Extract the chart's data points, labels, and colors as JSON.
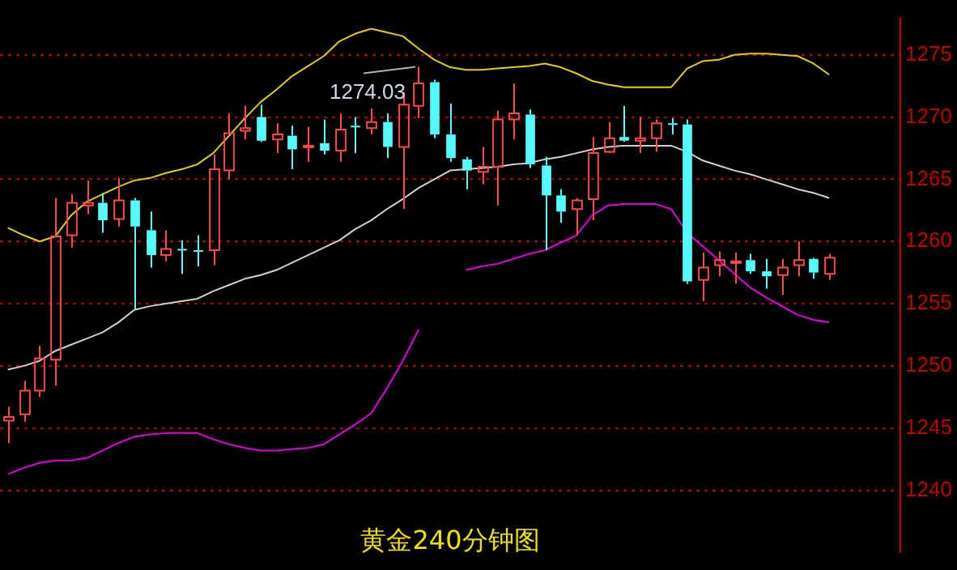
{
  "chart_data": {
    "type": "candlestick",
    "title": "黄金240分钟图",
    "categories": [
      null,
      null,
      null,
      null,
      null,
      null,
      null,
      null,
      null,
      null,
      null,
      null,
      null,
      null,
      null,
      null,
      null,
      null,
      null,
      null,
      null,
      null,
      null,
      null,
      null,
      null,
      null,
      null,
      null,
      null,
      null,
      null,
      null,
      null,
      null,
      null,
      null,
      null,
      null,
      null,
      null,
      null,
      null,
      null,
      null,
      null,
      null,
      null,
      null,
      null,
      null,
      null,
      null
    ],
    "ohlc": [
      [
        1245.6,
        1246.7,
        1243.8,
        1245.9
      ],
      [
        1246.1,
        1248.8,
        1245.5,
        1248.0
      ],
      [
        1248.0,
        1251.6,
        1247.5,
        1250.6
      ],
      [
        1250.5,
        1263.5,
        1248.4,
        1260.4
      ],
      [
        1260.5,
        1263.8,
        1259.5,
        1263.1
      ],
      [
        1262.9,
        1264.9,
        1262.2,
        1263.1
      ],
      [
        1263.1,
        1263.9,
        1260.7,
        1261.7
      ],
      [
        1261.8,
        1265.1,
        1261.2,
        1263.3
      ],
      [
        1263.3,
        1263.5,
        1254.5,
        1261.2
      ],
      [
        1260.9,
        1262.4,
        1257.9,
        1258.9
      ],
      [
        1258.9,
        1260.9,
        1258.4,
        1259.4
      ],
      [
        1259.4,
        1260.1,
        1257.4,
        1259.3
      ],
      [
        1259.3,
        1260.5,
        1258.0,
        1259.2
      ],
      [
        1259.3,
        1267.0,
        1258.1,
        1265.8
      ],
      [
        1265.7,
        1270.3,
        1265.0,
        1268.7
      ],
      [
        1268.9,
        1270.9,
        1268.2,
        1269.1
      ],
      [
        1270.0,
        1271.0,
        1268.0,
        1268.1
      ],
      [
        1268.2,
        1269.5,
        1267.1,
        1268.6
      ],
      [
        1268.5,
        1269.3,
        1265.8,
        1267.4
      ],
      [
        1267.6,
        1269.2,
        1266.4,
        1267.7
      ],
      [
        1267.9,
        1269.8,
        1267.0,
        1267.3
      ],
      [
        1267.3,
        1270.3,
        1266.4,
        1269.0
      ],
      [
        1269.3,
        1270.0,
        1267.1,
        1269.2
      ],
      [
        1269.1,
        1270.7,
        1268.6,
        1269.6
      ],
      [
        1269.6,
        1270.3,
        1266.7,
        1267.6
      ],
      [
        1267.6,
        1272.0,
        1262.6,
        1271.0
      ],
      [
        1270.9,
        1274.03,
        1269.9,
        1272.7
      ],
      [
        1272.8,
        1273.0,
        1268.3,
        1268.6
      ],
      [
        1268.6,
        1271.1,
        1266.4,
        1266.7
      ],
      [
        1266.6,
        1266.8,
        1264.2,
        1265.7
      ],
      [
        1265.6,
        1267.6,
        1264.6,
        1266.0
      ],
      [
        1266.0,
        1270.5,
        1262.9,
        1269.8
      ],
      [
        1269.8,
        1272.7,
        1268.2,
        1270.3
      ],
      [
        1270.2,
        1270.6,
        1265.9,
        1266.2
      ],
      [
        1266.1,
        1266.8,
        1259.3,
        1263.7
      ],
      [
        1263.7,
        1264.2,
        1261.5,
        1262.4
      ],
      [
        1262.6,
        1263.5,
        1260.5,
        1263.3
      ],
      [
        1263.4,
        1268.4,
        1261.7,
        1267.1
      ],
      [
        1267.2,
        1269.6,
        1267.1,
        1268.3
      ],
      [
        1268.4,
        1270.9,
        1268.0,
        1268.1
      ],
      [
        1268.1,
        1270.0,
        1267.1,
        1268.3
      ],
      [
        1268.3,
        1269.8,
        1267.2,
        1269.5
      ],
      [
        1269.5,
        1269.9,
        1268.6,
        1269.4
      ],
      [
        1269.4,
        1269.8,
        1256.6,
        1256.8
      ],
      [
        1256.9,
        1259.1,
        1255.2,
        1257.9
      ],
      [
        1258.1,
        1259.2,
        1257.2,
        1258.5
      ],
      [
        1258.3,
        1259.1,
        1256.6,
        1258.4
      ],
      [
        1258.5,
        1259.0,
        1257.4,
        1257.6
      ],
      [
        1257.6,
        1258.6,
        1256.2,
        1257.2
      ],
      [
        1257.3,
        1258.6,
        1255.7,
        1257.9
      ],
      [
        1258.1,
        1260.0,
        1257.2,
        1258.5
      ],
      [
        1258.6,
        1258.7,
        1257.0,
        1257.5
      ],
      [
        1257.4,
        1259.0,
        1256.9,
        1258.7
      ]
    ],
    "colors": [
      "#ff4a4a",
      "#ff4a4a",
      "#ff4a4a",
      "#ff4a4a",
      "#ff4a4a",
      "#ff4a4a",
      "#54fcfc",
      "#ff4a4a",
      "#54fcfc",
      "#54fcfc",
      "#ff4a4a",
      "#54fcfc",
      "#54fcfc",
      "#ff4a4a",
      "#ff4a4a",
      "#ff4a4a",
      "#54fcfc",
      "#ff4a4a",
      "#54fcfc",
      "#ff4a4a",
      "#54fcfc",
      "#ff4a4a",
      "#54fcfc",
      "#ff4a4a",
      "#54fcfc",
      "#ff4a4a",
      "#ff4a4a",
      "#54fcfc",
      "#54fcfc",
      "#54fcfc",
      "#ff4a4a",
      "#ff4a4a",
      "#ff4a4a",
      "#54fcfc",
      "#54fcfc",
      "#54fcfc",
      "#ff4a4a",
      "#ff4a4a",
      "#ff4a4a",
      "#54fcfc",
      "#ff4a4a",
      "#ff4a4a",
      "#54fcfc",
      "#54fcfc",
      "#ff4a4a",
      "#ff4a4a",
      "#ff4a4a",
      "#54fcfc",
      "#54fcfc",
      "#ff4a4a",
      "#ff4a4a",
      "#54fcfc",
      "#ff4a4a"
    ],
    "series": [
      {
        "type": "line",
        "color": "#e0d000",
        "values": [
          1261.1,
          1260.5,
          1260.0,
          1260.4,
          1262.1,
          1263.2,
          1263.8,
          1264.4,
          1264.9,
          1265.1,
          1265.5,
          1265.8,
          1266.2,
          1267.1,
          1268.5,
          1269.9,
          1271.2,
          1272.2,
          1273.3,
          1274.1,
          1274.9,
          1276.1,
          1276.7,
          1277.1,
          1276.8,
          1276.5,
          1275.5,
          1274.6,
          1274.0,
          1273.8,
          1273.8,
          1273.9,
          1274.0,
          1274.1,
          1274.3,
          1274.0,
          1273.5,
          1272.9,
          1272.6,
          1272.4,
          1272.4,
          1272.4,
          1272.4,
          1273.9,
          1274.5,
          1274.6,
          1275.0,
          1275.1,
          1275.1,
          1275.0,
          1274.9,
          1274.3,
          1273.4
        ]
      },
      {
        "type": "line",
        "color": "#d0d0d0",
        "values": [
          1249.7,
          1250.0,
          1250.4,
          1251.2,
          1251.7,
          1252.2,
          1252.7,
          1253.5,
          1254.5,
          1254.8,
          1255.0,
          1255.2,
          1255.4,
          1256.0,
          1256.5,
          1257.0,
          1257.3,
          1257.7,
          1258.3,
          1258.9,
          1259.5,
          1260.1,
          1261.0,
          1261.7,
          1262.6,
          1263.4,
          1264.3,
          1265.0,
          1265.7,
          1265.8,
          1265.9,
          1266.0,
          1266.2,
          1266.3,
          1266.6,
          1266.8,
          1267.1,
          1267.4,
          1267.6,
          1267.7,
          1267.7,
          1267.7,
          1267.7,
          1267.2,
          1266.5,
          1266.1,
          1265.7,
          1265.4,
          1265.0,
          1264.6,
          1264.2,
          1263.9,
          1263.5
        ]
      },
      {
        "type": "line",
        "color": "#e000e0",
        "values": [
          1241.3,
          1241.8,
          1242.2,
          1242.4,
          1242.4,
          1242.6,
          1243.2,
          1243.8,
          1244.3,
          1244.5,
          1244.6,
          1244.6,
          1244.6,
          1244.1,
          1243.7,
          1243.4,
          1243.2,
          1243.2,
          1243.3,
          1243.4,
          1243.7,
          1244.5,
          1245.3,
          1246.2,
          1248.2,
          1250.4,
          1252.9,
          null,
          null,
          1257.7,
          1258.0,
          1258.2,
          1258.6,
          1259.0,
          1259.3,
          1259.9,
          1260.5,
          1262.1,
          1262.9,
          1263.0,
          1263.0,
          1263.0,
          1262.6,
          1260.7,
          1259.6,
          1258.5,
          1257.4,
          1256.3,
          1255.5,
          1254.8,
          1254.1,
          1253.7,
          1253.5
        ]
      }
    ],
    "ylim": [
      1235,
      1278
    ],
    "yticks": [
      1240,
      1245,
      1250,
      1255,
      1260,
      1265,
      1270,
      1275
    ],
    "grid": "y",
    "annotations": [
      "1274.03"
    ]
  }
}
